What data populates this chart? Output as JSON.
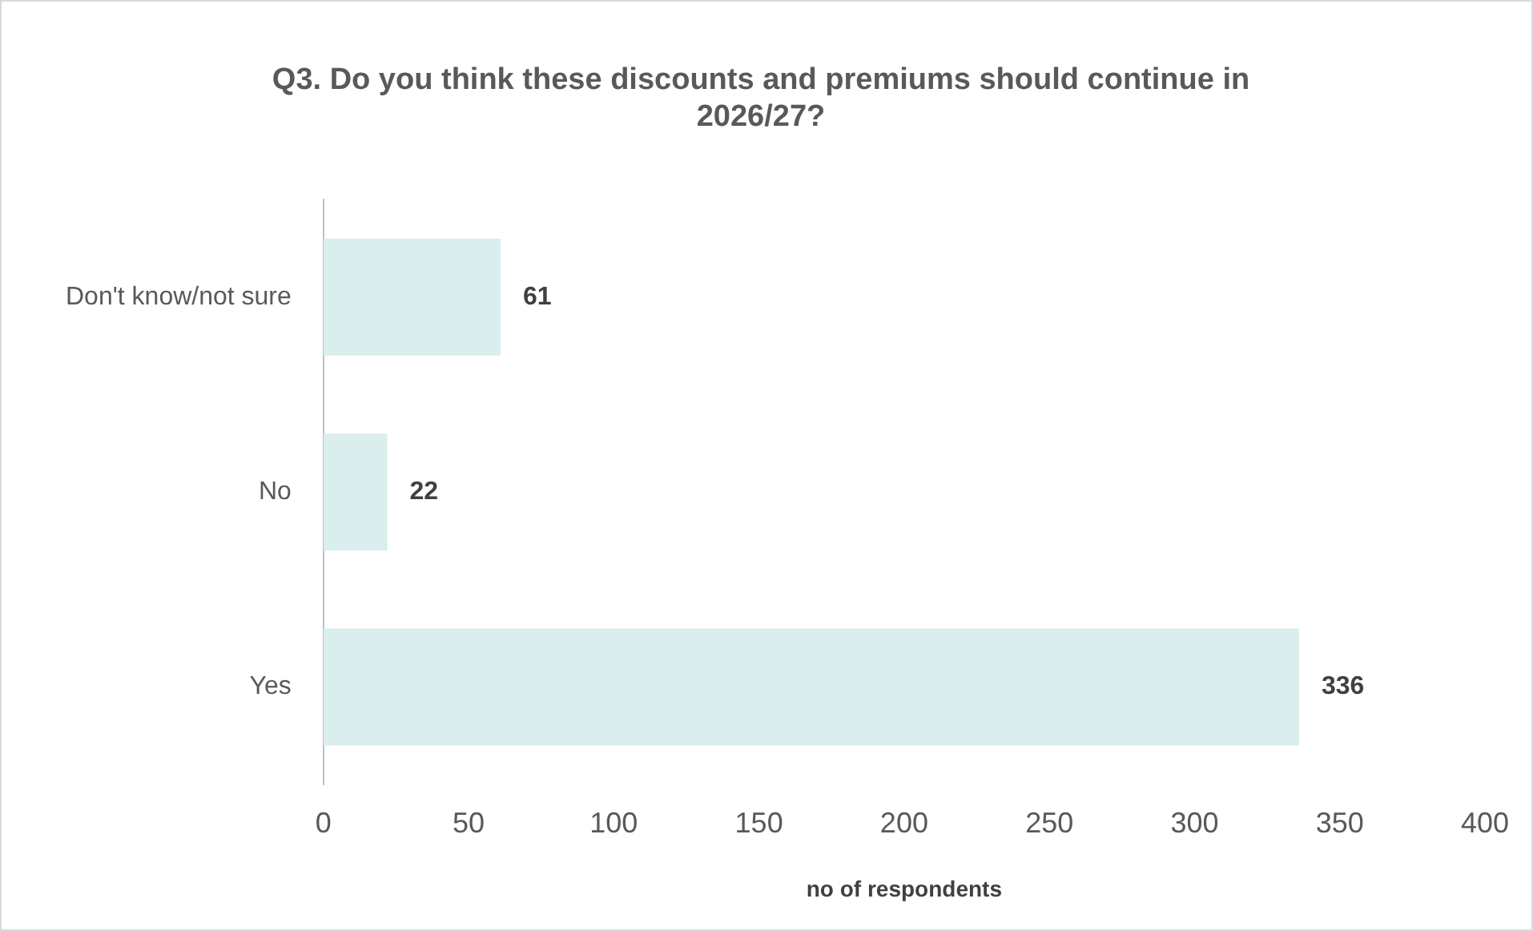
{
  "chart_data": {
    "type": "bar",
    "orientation": "horizontal",
    "title": "Q3. Do you think these discounts and premiums should continue in 2026/27?",
    "xlabel": "no of respondents",
    "categories": [
      "Don't know/not sure",
      "No",
      "Yes"
    ],
    "values": [
      61,
      22,
      336
    ],
    "color": "#daeeed",
    "xlim": [
      0,
      400
    ],
    "xticks": [
      0,
      50,
      100,
      150,
      200,
      250,
      300,
      350,
      400
    ],
    "grid": false,
    "legend": false,
    "data_labels": true
  }
}
